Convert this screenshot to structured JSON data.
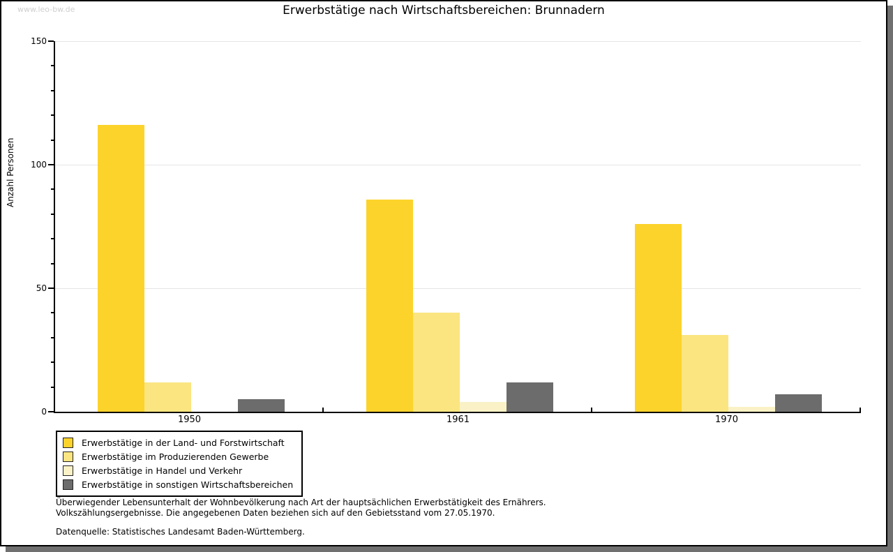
{
  "watermark": "www.leo-bw.de",
  "title": "Erwerbstätige nach Wirtschaftsbereichen: Brunnadern",
  "chart_data": {
    "type": "bar",
    "title": "Erwerbstätige nach Wirtschaftsbereichen: Brunnadern",
    "xlabel": "",
    "ylabel": "Anzahl Personen",
    "ylim": [
      0,
      150
    ],
    "ytick_major_step": 50,
    "ytick_minor_step": 10,
    "grid": "horizontal major gridlines at 50, 100, 150",
    "legend_position": "bottom-left",
    "categories": [
      "1950",
      "1961",
      "1970"
    ],
    "series": [
      {
        "name": "Erwerbstätige in der Land- und Forstwirtschaft",
        "color": "#fcd32b",
        "values": [
          116,
          86,
          76
        ]
      },
      {
        "name": "Erwerbstätige im Produzierenden Gewerbe",
        "color": "#fbe581",
        "values": [
          12,
          40,
          31
        ]
      },
      {
        "name": "Erwerbstätige in Handel und Verkehr",
        "color": "#faf2c6",
        "values": [
          0,
          4,
          2
        ]
      },
      {
        "name": "Erwerbstätige in sonstigen Wirtschaftsbereichen",
        "color": "#6c6c6c",
        "values": [
          5,
          12,
          7
        ]
      }
    ]
  },
  "footer": {
    "line1": "Überwiegender Lebensunterhalt der Wohnbevölkerung nach Art der hauptsächlichen Erwerbstätigkeit des Ernährers.",
    "line2": "Volkszählungsergebnisse. Die angegebenen Daten beziehen sich auf den Gebietsstand vom 27.05.1970.",
    "source": "Datenquelle: Statistisches Landesamt Baden-Württemberg."
  },
  "colors": {
    "axis": "#000000",
    "gridline": "#e5e5e5",
    "watermark": "#cfcfcf",
    "shadow": "#707070",
    "background": "#ffffff"
  }
}
